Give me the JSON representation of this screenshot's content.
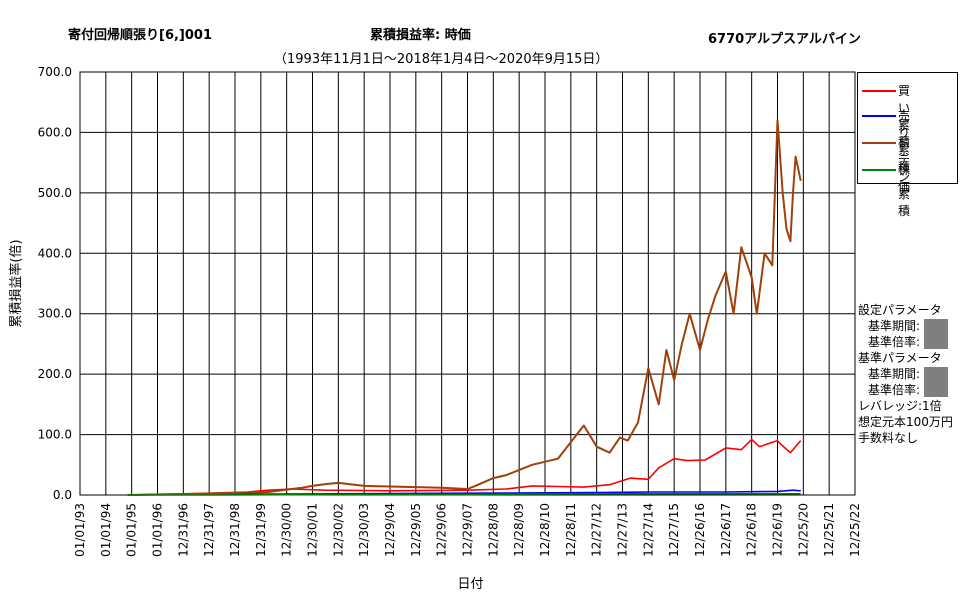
{
  "header": {
    "title_left": "寄付回帰順張り[6,]001",
    "title_center": "累積損益率:  時価",
    "title_right": "6770アルプスアルパイン",
    "subtitle": "（1993年11月1日～2018年1月4日～2020年9月15日）"
  },
  "settings": {
    "setting_params_label": "設定パラメータ",
    "setting_period_label": "基準期間:",
    "setting_rate_label": "基準倍率:",
    "base_params_label": "基準パラメータ",
    "base_period_label": "基準期間:",
    "base_rate_label": "基準倍率:",
    "leverage": "レバレッジ:1倍",
    "capital": "想定元本100万円",
    "fee": "手数料なし"
  },
  "chart_data": {
    "type": "line",
    "xlabel": "日付",
    "ylabel": "累積損益率(倍)",
    "ylim": [
      0,
      700
    ],
    "yticks": [
      "0.0",
      "100.0",
      "200.0",
      "300.0",
      "400.0",
      "500.0",
      "600.0",
      "700.0"
    ],
    "categories": [
      "01/01/93",
      "01/01/94",
      "01/01/95",
      "01/01/96",
      "12/31/96",
      "12/31/97",
      "12/31/98",
      "12/31/99",
      "12/30/00",
      "12/30/01",
      "12/30/02",
      "12/30/03",
      "12/29/04",
      "12/29/05",
      "12/29/06",
      "12/29/07",
      "12/28/08",
      "12/28/09",
      "12/28/10",
      "12/28/11",
      "12/27/12",
      "12/27/13",
      "12/27/14",
      "12/27/15",
      "12/26/16",
      "12/26/17",
      "12/26/18",
      "12/26/19",
      "12/25/20",
      "12/25/21",
      "12/25/22"
    ],
    "grid": true,
    "legend_position": "right",
    "series": [
      {
        "name": "買い累積",
        "color": "#ff0000",
        "x": [
          1.85,
          3,
          5,
          6.5,
          7.3,
          8.2,
          9.5,
          12,
          15,
          16.5,
          17.5,
          18.5,
          19.5,
          20.5,
          21.3,
          22,
          22.4,
          23,
          23.5,
          24.2,
          25,
          25.6,
          26,
          26.3,
          27,
          27.1,
          27.5,
          27.9
        ],
        "values": [
          0,
          1,
          3,
          5,
          8,
          10,
          8,
          7,
          8,
          10,
          15,
          14,
          13,
          17,
          28,
          26,
          45,
          60,
          57,
          58,
          78,
          75,
          92,
          80,
          90,
          85,
          70,
          90
        ]
      },
      {
        "name": "売り累積",
        "color": "#0000ff",
        "x": [
          1.85,
          5,
          10,
          15,
          20,
          22,
          25,
          27,
          27.6,
          27.9
        ],
        "values": [
          0,
          1,
          2,
          3,
          4,
          5,
          5,
          6,
          8,
          7
        ]
      },
      {
        "name": "ドテン累積",
        "color": "#a0400a",
        "x": [
          1.85,
          3,
          5,
          7.3,
          8.2,
          8.6,
          9,
          9.5,
          10,
          11,
          12,
          13,
          14,
          15,
          15.3,
          16,
          16.5,
          17.5,
          18.5,
          19.5,
          20,
          20.5,
          20.9,
          21.2,
          21.6,
          22,
          22.4,
          22.7,
          23,
          23.3,
          23.6,
          24,
          24.3,
          24.6,
          25,
          25.3,
          25.6,
          26,
          26.2,
          26.5,
          26.8,
          27,
          27.1,
          27.2,
          27.35,
          27.5,
          27.6,
          27.7,
          27.8,
          27.9
        ],
        "values": [
          0,
          1,
          2,
          5,
          10,
          12,
          15,
          18,
          20,
          15,
          14,
          13,
          12,
          10,
          15,
          28,
          33,
          50,
          60,
          115,
          80,
          70,
          95,
          90,
          120,
          210,
          150,
          240,
          190,
          250,
          300,
          240,
          290,
          330,
          370,
          300,
          410,
          360,
          300,
          400,
          380,
          620,
          560,
          500,
          440,
          420,
          500,
          560,
          540,
          520
        ]
      },
      {
        "name": "株価",
        "color": "#008000",
        "x": [
          1.85,
          5,
          10,
          15,
          20,
          25,
          27.9
        ],
        "values": [
          0,
          0,
          1,
          1,
          2,
          2,
          2
        ]
      }
    ]
  }
}
